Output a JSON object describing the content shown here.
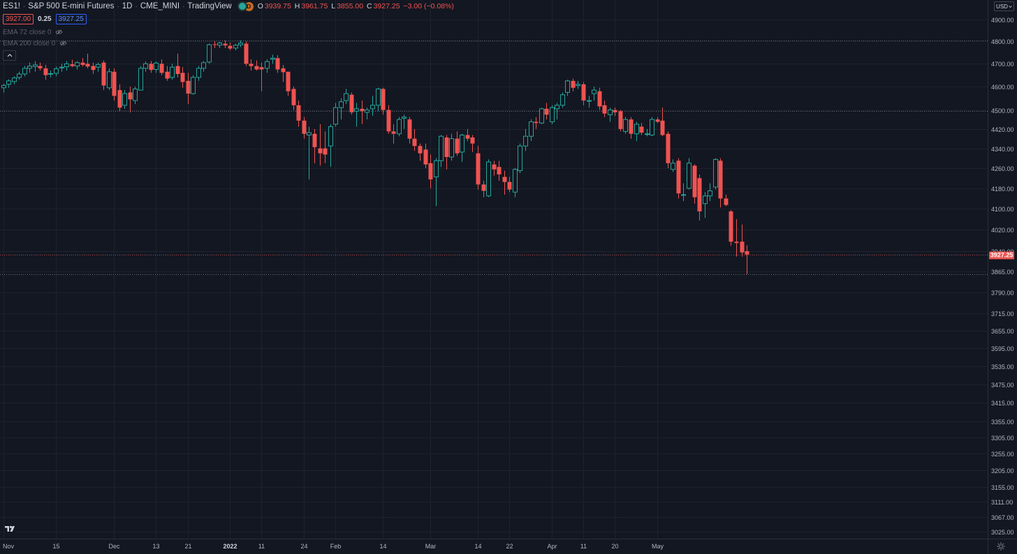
{
  "header": {
    "symbol": "ES1!",
    "name": "S&P 500 E-mini Futures",
    "interval": "1D",
    "exchange": "CME_MINI",
    "source": "TradingView",
    "status_badge": "D",
    "ohlc": {
      "open_label": "O",
      "open": "3939.75",
      "high_label": "H",
      "high": "3961.75",
      "low_label": "L",
      "low": "3855.00",
      "close_label": "C",
      "close": "3927.25",
      "change": "−3.00 (−0.08%)"
    },
    "bid": "3927.00",
    "spread": "0.25",
    "ask": "3927.25"
  },
  "indicators": [
    {
      "label": "EMA 72 close 0"
    },
    {
      "label": "EMA 200 close 0"
    }
  ],
  "currency": "USD",
  "last_price": "3927.25",
  "colors": {
    "background": "#131722",
    "up": "#26a69a",
    "down": "#ef5350",
    "grid": "#1e222d",
    "text": "#b2b5be"
  },
  "chart_data": {
    "type": "candlestick",
    "y_scale": "log",
    "ylim": [
      3000,
      4900
    ],
    "price_ticks": [
      "4900.00",
      "4800.00",
      "4700.00",
      "4600.00",
      "4500.00",
      "4420.00",
      "4340.00",
      "4260.00",
      "4180.00",
      "4100.00",
      "4020.00",
      "3940.00",
      "3865.00",
      "3790.00",
      "3715.00",
      "3655.00",
      "3595.00",
      "3535.00",
      "3475.00",
      "3415.00",
      "3355.00",
      "3305.00",
      "3255.00",
      "3205.00",
      "3155.00",
      "3111.00",
      "3067.00",
      "3025.00"
    ],
    "time_ticks": [
      {
        "label": "Nov",
        "bar": 0
      },
      {
        "label": "15",
        "bar": 10
      },
      {
        "label": "Dec",
        "bar": 21
      },
      {
        "label": "13",
        "bar": 29
      },
      {
        "label": "21",
        "bar": 35
      },
      {
        "label": "2022",
        "bar": 43,
        "bold": true
      },
      {
        "label": "11",
        "bar": 49
      },
      {
        "label": "24",
        "bar": 57
      },
      {
        "label": "Feb",
        "bar": 63
      },
      {
        "label": "14",
        "bar": 72
      },
      {
        "label": "Mar",
        "bar": 81
      },
      {
        "label": "14",
        "bar": 90
      },
      {
        "label": "22",
        "bar": 96
      },
      {
        "label": "Apr",
        "bar": 104
      },
      {
        "label": "11",
        "bar": 110
      },
      {
        "label": "20",
        "bar": 116
      },
      {
        "label": "May",
        "bar": 124
      }
    ],
    "price_lines": [
      4805,
      4495,
      3927.25,
      3855
    ],
    "candles": [
      {
        "o": 4595,
        "h": 4612,
        "l": 4575,
        "c": 4605
      },
      {
        "o": 4610,
        "h": 4632,
        "l": 4595,
        "c": 4625
      },
      {
        "o": 4622,
        "h": 4645,
        "l": 4610,
        "c": 4638
      },
      {
        "o": 4640,
        "h": 4665,
        "l": 4630,
        "c": 4655
      },
      {
        "o": 4655,
        "h": 4690,
        "l": 4645,
        "c": 4680
      },
      {
        "o": 4680,
        "h": 4705,
        "l": 4660,
        "c": 4690
      },
      {
        "o": 4688,
        "h": 4712,
        "l": 4665,
        "c": 4695
      },
      {
        "o": 4690,
        "h": 4705,
        "l": 4670,
        "c": 4680
      },
      {
        "o": 4680,
        "h": 4695,
        "l": 4630,
        "c": 4650
      },
      {
        "o": 4655,
        "h": 4670,
        "l": 4640,
        "c": 4657
      },
      {
        "o": 4658,
        "h": 4688,
        "l": 4645,
        "c": 4678
      },
      {
        "o": 4682,
        "h": 4700,
        "l": 4665,
        "c": 4685
      },
      {
        "o": 4687,
        "h": 4712,
        "l": 4670,
        "c": 4700
      },
      {
        "o": 4698,
        "h": 4718,
        "l": 4685,
        "c": 4690
      },
      {
        "o": 4690,
        "h": 4712,
        "l": 4675,
        "c": 4705
      },
      {
        "o": 4705,
        "h": 4725,
        "l": 4688,
        "c": 4695
      },
      {
        "o": 4700,
        "h": 4745,
        "l": 4680,
        "c": 4688
      },
      {
        "o": 4690,
        "h": 4705,
        "l": 4655,
        "c": 4673
      },
      {
        "o": 4685,
        "h": 4705,
        "l": 4665,
        "c": 4697
      },
      {
        "o": 4705,
        "h": 4715,
        "l": 4585,
        "c": 4605
      },
      {
        "o": 4595,
        "h": 4680,
        "l": 4585,
        "c": 4665
      },
      {
        "o": 4665,
        "h": 4680,
        "l": 4540,
        "c": 4560
      },
      {
        "o": 4585,
        "h": 4610,
        "l": 4495,
        "c": 4510
      },
      {
        "o": 4520,
        "h": 4585,
        "l": 4505,
        "c": 4570
      },
      {
        "o": 4575,
        "h": 4600,
        "l": 4490,
        "c": 4545
      },
      {
        "o": 4540,
        "h": 4600,
        "l": 4525,
        "c": 4590
      },
      {
        "o": 4585,
        "h": 4690,
        "l": 4585,
        "c": 4680
      },
      {
        "o": 4680,
        "h": 4710,
        "l": 4665,
        "c": 4700
      },
      {
        "o": 4700,
        "h": 4712,
        "l": 4660,
        "c": 4673
      },
      {
        "o": 4675,
        "h": 4710,
        "l": 4660,
        "c": 4703
      },
      {
        "o": 4700,
        "h": 4720,
        "l": 4650,
        "c": 4660
      },
      {
        "o": 4665,
        "h": 4690,
        "l": 4625,
        "c": 4635
      },
      {
        "o": 4640,
        "h": 4700,
        "l": 4630,
        "c": 4685
      },
      {
        "o": 4690,
        "h": 4745,
        "l": 4640,
        "c": 4655
      },
      {
        "o": 4660,
        "h": 4685,
        "l": 4595,
        "c": 4620
      },
      {
        "o": 4625,
        "h": 4660,
        "l": 4525,
        "c": 4570
      },
      {
        "o": 4570,
        "h": 4650,
        "l": 4565,
        "c": 4640
      },
      {
        "o": 4640,
        "h": 4690,
        "l": 4625,
        "c": 4680
      },
      {
        "o": 4680,
        "h": 4712,
        "l": 4665,
        "c": 4705
      },
      {
        "o": 4708,
        "h": 4790,
        "l": 4700,
        "c": 4785
      },
      {
        "o": 4787,
        "h": 4800,
        "l": 4770,
        "c": 4786
      },
      {
        "o": 4783,
        "h": 4798,
        "l": 4770,
        "c": 4793
      },
      {
        "o": 4790,
        "h": 4805,
        "l": 4770,
        "c": 4782
      },
      {
        "o": 4780,
        "h": 4795,
        "l": 4760,
        "c": 4768
      },
      {
        "o": 4770,
        "h": 4790,
        "l": 4760,
        "c": 4783
      },
      {
        "o": 4785,
        "h": 4805,
        "l": 4775,
        "c": 4793
      },
      {
        "o": 4790,
        "h": 4800,
        "l": 4690,
        "c": 4700
      },
      {
        "o": 4700,
        "h": 4720,
        "l": 4670,
        "c": 4690
      },
      {
        "o": 4690,
        "h": 4715,
        "l": 4670,
        "c": 4675
      },
      {
        "o": 4685,
        "h": 4705,
        "l": 4580,
        "c": 4675
      },
      {
        "o": 4680,
        "h": 4720,
        "l": 4660,
        "c": 4710
      },
      {
        "o": 4720,
        "h": 4740,
        "l": 4700,
        "c": 4725
      },
      {
        "o": 4725,
        "h": 4738,
        "l": 4660,
        "c": 4675
      },
      {
        "o": 4680,
        "h": 4695,
        "l": 4620,
        "c": 4663
      },
      {
        "o": 4665,
        "h": 4665,
        "l": 4560,
        "c": 4580
      },
      {
        "o": 4590,
        "h": 4600,
        "l": 4500,
        "c": 4520
      },
      {
        "o": 4520,
        "h": 4540,
        "l": 4430,
        "c": 4455
      },
      {
        "o": 4455,
        "h": 4470,
        "l": 4380,
        "c": 4400
      },
      {
        "o": 4395,
        "h": 4430,
        "l": 4215,
        "c": 4405
      },
      {
        "o": 4400,
        "h": 4420,
        "l": 4280,
        "c": 4345
      },
      {
        "o": 4340,
        "h": 4440,
        "l": 4270,
        "c": 4320
      },
      {
        "o": 4340,
        "h": 4410,
        "l": 4280,
        "c": 4315
      },
      {
        "o": 4350,
        "h": 4440,
        "l": 4265,
        "c": 4430
      },
      {
        "o": 4440,
        "h": 4530,
        "l": 4430,
        "c": 4510
      },
      {
        "o": 4510,
        "h": 4550,
        "l": 4460,
        "c": 4535
      },
      {
        "o": 4540,
        "h": 4590,
        "l": 4525,
        "c": 4570
      },
      {
        "o": 4565,
        "h": 4575,
        "l": 4480,
        "c": 4490
      },
      {
        "o": 4495,
        "h": 4530,
        "l": 4430,
        "c": 4505
      },
      {
        "o": 4505,
        "h": 4540,
        "l": 4440,
        "c": 4495
      },
      {
        "o": 4490,
        "h": 4510,
        "l": 4460,
        "c": 4500
      },
      {
        "o": 4505,
        "h": 4560,
        "l": 4475,
        "c": 4520
      },
      {
        "o": 4520,
        "h": 4595,
        "l": 4495,
        "c": 4590
      },
      {
        "o": 4590,
        "h": 4595,
        "l": 4480,
        "c": 4500
      },
      {
        "o": 4500,
        "h": 4520,
        "l": 4400,
        "c": 4410
      },
      {
        "o": 4410,
        "h": 4440,
        "l": 4360,
        "c": 4400
      },
      {
        "o": 4400,
        "h": 4470,
        "l": 4390,
        "c": 4460
      },
      {
        "o": 4465,
        "h": 4480,
        "l": 4420,
        "c": 4470
      },
      {
        "o": 4460,
        "h": 4470,
        "l": 4360,
        "c": 4380
      },
      {
        "o": 4380,
        "h": 4420,
        "l": 4330,
        "c": 4350
      },
      {
        "o": 4350,
        "h": 4360,
        "l": 4290,
        "c": 4320
      },
      {
        "o": 4335,
        "h": 4360,
        "l": 4260,
        "c": 4275
      },
      {
        "o": 4280,
        "h": 4315,
        "l": 4180,
        "c": 4215
      },
      {
        "o": 4225,
        "h": 4300,
        "l": 4110,
        "c": 4290
      },
      {
        "o": 4290,
        "h": 4395,
        "l": 4265,
        "c": 4390
      },
      {
        "o": 4385,
        "h": 4395,
        "l": 4255,
        "c": 4305
      },
      {
        "o": 4305,
        "h": 4400,
        "l": 4290,
        "c": 4380
      },
      {
        "o": 4380,
        "h": 4410,
        "l": 4310,
        "c": 4320
      },
      {
        "o": 4325,
        "h": 4400,
        "l": 4285,
        "c": 4395
      },
      {
        "o": 4395,
        "h": 4420,
        "l": 4370,
        "c": 4380
      },
      {
        "o": 4385,
        "h": 4395,
        "l": 4325,
        "c": 4360
      },
      {
        "o": 4320,
        "h": 4350,
        "l": 4175,
        "c": 4195
      },
      {
        "o": 4195,
        "h": 4210,
        "l": 4145,
        "c": 4170
      },
      {
        "o": 4150,
        "h": 4295,
        "l": 4145,
        "c": 4285
      },
      {
        "o": 4275,
        "h": 4290,
        "l": 4230,
        "c": 4255
      },
      {
        "o": 4265,
        "h": 4290,
        "l": 4210,
        "c": 4235
      },
      {
        "o": 4225,
        "h": 4250,
        "l": 4155,
        "c": 4205
      },
      {
        "o": 4205,
        "h": 4225,
        "l": 4165,
        "c": 4175
      },
      {
        "o": 4165,
        "h": 4260,
        "l": 4145,
        "c": 4255
      },
      {
        "o": 4250,
        "h": 4360,
        "l": 4240,
        "c": 4350
      },
      {
        "o": 4350,
        "h": 4420,
        "l": 4330,
        "c": 4390
      },
      {
        "o": 4390,
        "h": 4460,
        "l": 4370,
        "c": 4450
      },
      {
        "o": 4450,
        "h": 4470,
        "l": 4420,
        "c": 4445
      },
      {
        "o": 4445,
        "h": 4510,
        "l": 4440,
        "c": 4505
      },
      {
        "o": 4505,
        "h": 4530,
        "l": 4460,
        "c": 4480
      },
      {
        "o": 4450,
        "h": 4520,
        "l": 4440,
        "c": 4510
      },
      {
        "o": 4505,
        "h": 4530,
        "l": 4460,
        "c": 4520
      },
      {
        "o": 4520,
        "h": 4575,
        "l": 4510,
        "c": 4565
      },
      {
        "o": 4575,
        "h": 4630,
        "l": 4560,
        "c": 4625
      },
      {
        "o": 4625,
        "h": 4635,
        "l": 4580,
        "c": 4595
      },
      {
        "o": 4605,
        "h": 4625,
        "l": 4590,
        "c": 4610
      },
      {
        "o": 4610,
        "h": 4620,
        "l": 4520,
        "c": 4540
      },
      {
        "o": 4540,
        "h": 4560,
        "l": 4510,
        "c": 4540
      },
      {
        "o": 4570,
        "h": 4600,
        "l": 4540,
        "c": 4585
      },
      {
        "o": 4580,
        "h": 4595,
        "l": 4500,
        "c": 4515
      },
      {
        "o": 4520,
        "h": 4540,
        "l": 4470,
        "c": 4485
      },
      {
        "o": 4480,
        "h": 4510,
        "l": 4450,
        "c": 4500
      },
      {
        "o": 4500,
        "h": 4510,
        "l": 4475,
        "c": 4490
      },
      {
        "o": 4495,
        "h": 4500,
        "l": 4410,
        "c": 4420
      },
      {
        "o": 4410,
        "h": 4470,
        "l": 4400,
        "c": 4460
      },
      {
        "o": 4460,
        "h": 4470,
        "l": 4380,
        "c": 4400
      },
      {
        "o": 4400,
        "h": 4450,
        "l": 4370,
        "c": 4440
      },
      {
        "o": 4430,
        "h": 4445,
        "l": 4395,
        "c": 4405
      },
      {
        "o": 4400,
        "h": 4420,
        "l": 4390,
        "c": 4400
      },
      {
        "o": 4395,
        "h": 4470,
        "l": 4390,
        "c": 4460
      },
      {
        "o": 4460,
        "h": 4470,
        "l": 4445,
        "c": 4450
      },
      {
        "o": 4455,
        "h": 4510,
        "l": 4390,
        "c": 4395
      },
      {
        "o": 4400,
        "h": 4410,
        "l": 4260,
        "c": 4280
      },
      {
        "o": 4255,
        "h": 4295,
        "l": 4245,
        "c": 4280
      },
      {
        "o": 4290,
        "h": 4300,
        "l": 4140,
        "c": 4160
      },
      {
        "o": 4155,
        "h": 4200,
        "l": 4130,
        "c": 4155
      },
      {
        "o": 4180,
        "h": 4300,
        "l": 4175,
        "c": 4280
      },
      {
        "o": 4270,
        "h": 4275,
        "l": 4120,
        "c": 4145
      },
      {
        "o": 4220,
        "h": 4235,
        "l": 4055,
        "c": 4090
      },
      {
        "o": 4120,
        "h": 4165,
        "l": 4065,
        "c": 4150
      },
      {
        "o": 4150,
        "h": 4200,
        "l": 4130,
        "c": 4170
      },
      {
        "o": 4185,
        "h": 4300,
        "l": 4175,
        "c": 4295
      },
      {
        "o": 4290,
        "h": 4300,
        "l": 4105,
        "c": 4140
      },
      {
        "o": 4140,
        "h": 4155,
        "l": 4110,
        "c": 4115
      },
      {
        "o": 4090,
        "h": 4095,
        "l": 3960,
        "c": 3975
      },
      {
        "o": 3975,
        "h": 4060,
        "l": 3920,
        "c": 3970
      },
      {
        "o": 3975,
        "h": 4040,
        "l": 3920,
        "c": 3935
      },
      {
        "o": 3939.75,
        "h": 3961.75,
        "l": 3855,
        "c": 3927.25
      }
    ]
  }
}
